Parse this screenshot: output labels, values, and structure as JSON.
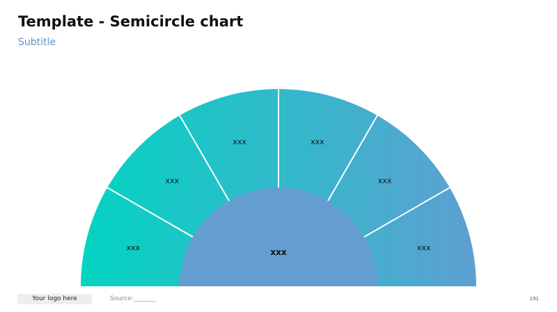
{
  "slide": {
    "title": "Template - Semicircle chart",
    "subtitle": "Subtitle"
  },
  "diagram": {
    "segments": [
      {
        "label": "xxx"
      },
      {
        "label": "xxx"
      },
      {
        "label": "xxx"
      },
      {
        "label": "xxx"
      },
      {
        "label": "xxx"
      },
      {
        "label": "xxx"
      }
    ],
    "center_label": "xxx",
    "colors": {
      "gradient_start": "#03d4c2",
      "gradient_end": "#5e9fd2",
      "center": "#649dcf",
      "divider": "#ffffff"
    }
  },
  "footer": {
    "logo": "Your logo here",
    "source": "Source:_______",
    "page": "191"
  }
}
